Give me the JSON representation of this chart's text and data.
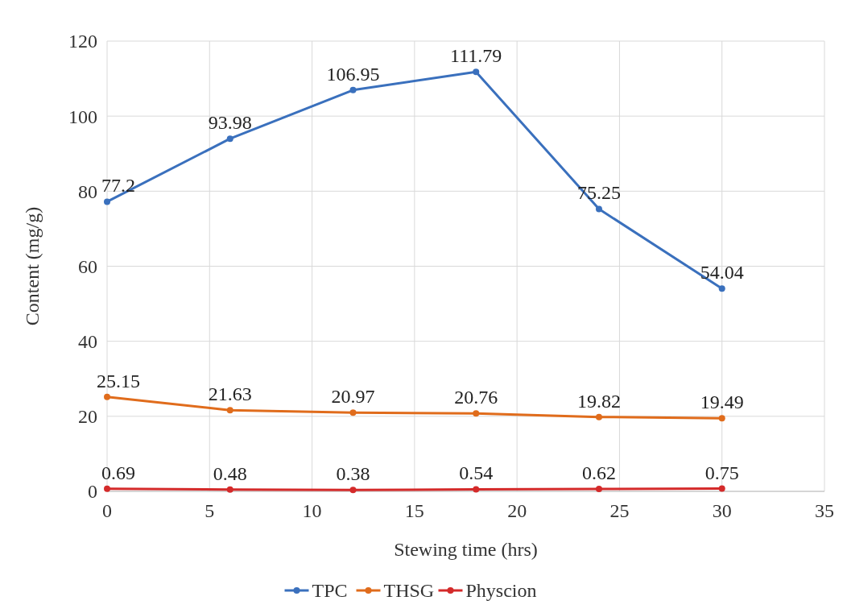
{
  "chart_data": {
    "type": "line",
    "xlabel": "Stewing time (hrs)",
    "ylabel": "Content (mg/g)",
    "x": [
      0,
      6,
      12,
      18,
      24,
      30
    ],
    "series": [
      {
        "name": "TPC",
        "color": "#3a70bd",
        "values": [
          77.2,
          93.98,
          106.95,
          111.79,
          75.25,
          54.04
        ]
      },
      {
        "name": "THSG",
        "color": "#e06c1c",
        "values": [
          25.15,
          21.63,
          20.97,
          20.76,
          19.82,
          19.49
        ]
      },
      {
        "name": "Physcion",
        "color": "#d42a2a",
        "values": [
          0.69,
          0.48,
          0.38,
          0.54,
          0.62,
          0.75
        ]
      }
    ],
    "xlim": [
      0,
      35
    ],
    "xticks": [
      0,
      5,
      10,
      15,
      20,
      25,
      30,
      35
    ],
    "ylim": [
      0,
      120
    ],
    "yticks": [
      0,
      20,
      40,
      60,
      80,
      100,
      120
    ],
    "grid": true,
    "legend": "bottom",
    "marker": "circle",
    "line_style": "solid",
    "data_labels": true
  }
}
